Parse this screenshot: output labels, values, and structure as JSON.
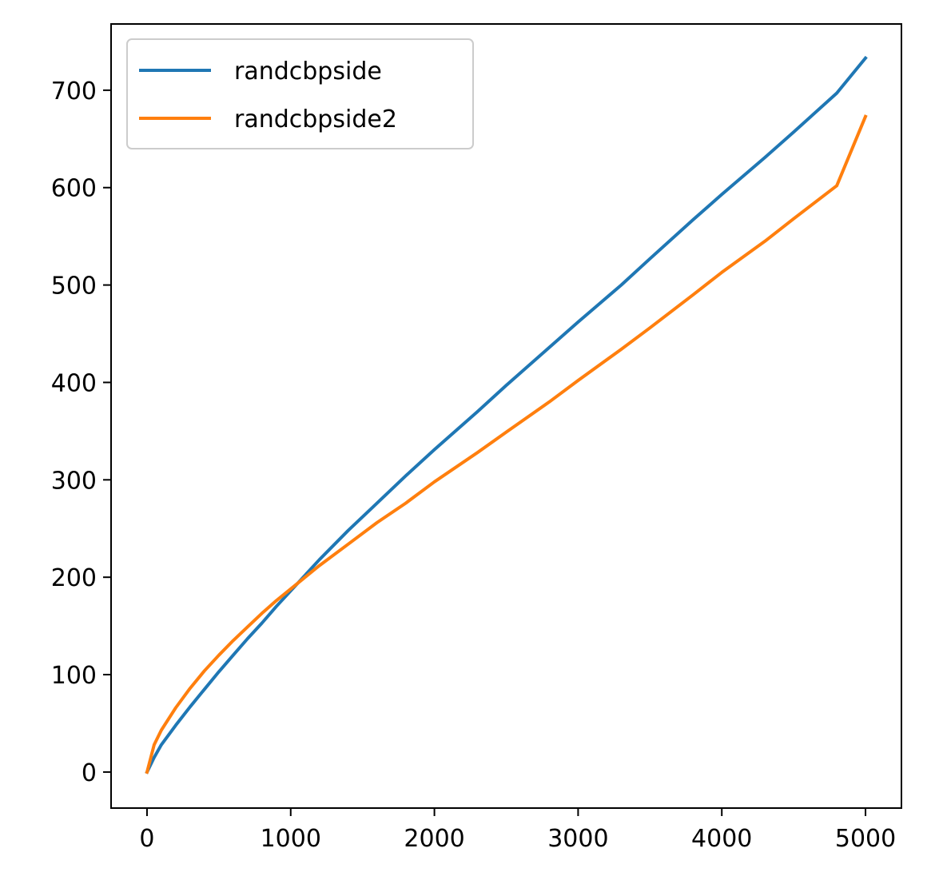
{
  "chart_data": {
    "type": "line",
    "title": "",
    "xlabel": "",
    "ylabel": "",
    "xlim": [
      -250,
      5250
    ],
    "ylim": [
      -37,
      768
    ],
    "xticks": [
      0,
      1000,
      2000,
      3000,
      4000,
      5000
    ],
    "yticks": [
      0,
      100,
      200,
      300,
      400,
      500,
      600,
      700
    ],
    "grid": false,
    "legend_position": "upper-left",
    "series": [
      {
        "name": "randcbpside",
        "color": "#1f77b4",
        "x": [
          0,
          50,
          100,
          200,
          300,
          400,
          500,
          600,
          700,
          800,
          900,
          1000,
          1200,
          1400,
          1600,
          1800,
          2000,
          2300,
          2500,
          2800,
          3000,
          3300,
          3500,
          3800,
          4000,
          4300,
          4500,
          4800,
          5000
        ],
        "y": [
          0,
          15,
          28,
          48,
          67,
          85,
          103,
          120,
          137,
          153,
          170,
          186,
          218,
          248,
          276,
          304,
          331,
          370,
          397,
          436,
          462,
          500,
          527,
          567,
          593,
          631,
          657,
          697,
          733
        ]
      },
      {
        "name": "randcbpside2",
        "color": "#ff7f0e",
        "x": [
          0,
          50,
          100,
          200,
          300,
          400,
          500,
          600,
          700,
          800,
          900,
          1000,
          1200,
          1400,
          1600,
          1800,
          2000,
          2300,
          2500,
          2800,
          3000,
          3300,
          3500,
          3800,
          4000,
          4300,
          4500,
          4800,
          5000
        ],
        "y": [
          0,
          28,
          43,
          66,
          86,
          104,
          120,
          135,
          149,
          163,
          176,
          188,
          212,
          234,
          256,
          276,
          298,
          328,
          349,
          380,
          402,
          434,
          456,
          490,
          513,
          545,
          568,
          602,
          673
        ]
      }
    ]
  }
}
